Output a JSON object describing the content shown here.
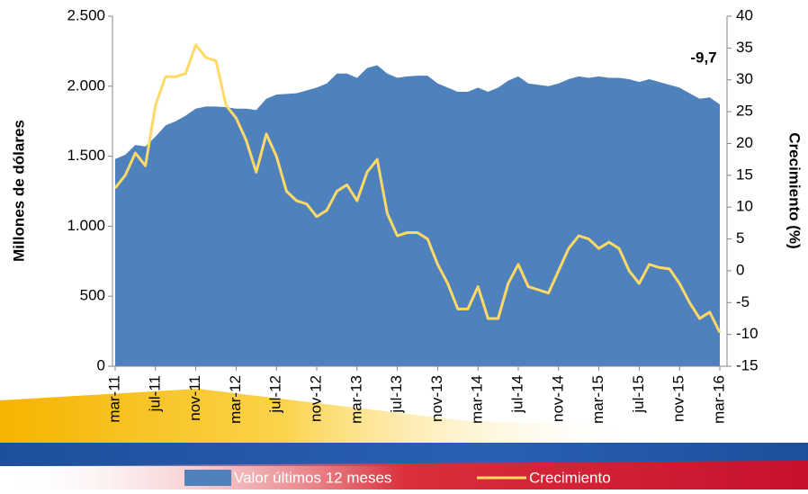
{
  "chart_data": {
    "type": "area-line",
    "y_label": "Millones de dólares",
    "y2_label": "Crecimiento  (%)",
    "categories": [
      "mar-11",
      null,
      null,
      null,
      "jul-11",
      null,
      null,
      null,
      "nov-11",
      null,
      null,
      null,
      "mar-12",
      null,
      null,
      null,
      "jul-12",
      null,
      null,
      null,
      "nov-12",
      null,
      null,
      null,
      "mar-13",
      null,
      null,
      null,
      "jul-13",
      null,
      null,
      null,
      "nov-13",
      null,
      null,
      null,
      "mar-14",
      null,
      null,
      null,
      "jul-14",
      null,
      null,
      null,
      "nov-14",
      null,
      null,
      null,
      "mar-15",
      null,
      null,
      null,
      "jul-15",
      null,
      null,
      null,
      "nov-15",
      null,
      null,
      null,
      "mar-16"
    ],
    "series": [
      {
        "name": "Valor últimos 12 meses",
        "color": "#4f81bd",
        "type": "area",
        "values": [
          1480,
          1510,
          1580,
          1570,
          1640,
          1720,
          1750,
          1790,
          1840,
          1855,
          1855,
          1850,
          1840,
          1840,
          1830,
          1910,
          1940,
          1945,
          1950,
          1970,
          1990,
          2020,
          2090,
          2090,
          2060,
          2130,
          2150,
          2090,
          2060,
          2070,
          2075,
          2075,
          2020,
          1990,
          1960,
          1960,
          1990,
          1960,
          1990,
          2040,
          2070,
          2020,
          2010,
          2000,
          2020,
          2050,
          2070,
          2060,
          2070,
          2060,
          2060,
          2050,
          2030,
          2050,
          2030,
          2010,
          1990,
          1950,
          1910,
          1920,
          1870
        ]
      },
      {
        "name": "Crecimiento",
        "color": "#ffd966",
        "type": "line",
        "axis": "y2",
        "values": [
          13,
          15,
          18.5,
          16.5,
          26,
          30.5,
          30.5,
          31,
          35.5,
          33.5,
          33,
          26,
          24,
          20.5,
          15.5,
          21.5,
          18,
          12.5,
          11,
          10.5,
          8.5,
          9.5,
          12.5,
          13.5,
          11,
          15.5,
          17.5,
          9,
          5.5,
          6,
          6,
          5,
          1,
          -2,
          -6,
          -6,
          -2.5,
          -7.5,
          -7.5,
          -2,
          1,
          -2.5,
          -3,
          -3.5,
          0,
          3.5,
          5.5,
          5,
          3.5,
          4.5,
          3.5,
          0,
          -2,
          1,
          0.5,
          0.3,
          -2,
          -5,
          -7.5,
          -6.5,
          -9.7
        ],
        "value_labels": [
          null,
          null,
          null,
          null,
          null,
          null,
          null,
          null,
          null,
          null,
          null,
          null,
          null,
          null,
          null,
          null,
          null,
          null,
          null,
          null,
          null,
          null,
          null,
          null,
          null,
          null,
          null,
          null,
          null,
          null,
          null,
          null,
          null,
          null,
          null,
          null,
          null,
          null,
          null,
          null,
          null,
          null,
          null,
          null,
          null,
          null,
          null,
          null,
          null,
          null,
          null,
          null,
          null,
          null,
          null,
          null,
          null,
          null,
          null,
          null,
          "-9,7"
        ]
      }
    ],
    "ylim": [
      0,
      2500
    ],
    "yticks": [
      0,
      500,
      {
        "value": 1000,
        "label": "1.000"
      },
      {
        "value": 1500,
        "label": "1.500"
      },
      {
        "value": 2000,
        "label": "2.000"
      },
      {
        "value": 2500,
        "label": "2.500"
      }
    ],
    "y2lim": [
      -15,
      40
    ],
    "y2ticks": [
      -15,
      -10,
      -5,
      0,
      5,
      10,
      15,
      20,
      25,
      30,
      35,
      40
    ],
    "legend": "bottom"
  }
}
